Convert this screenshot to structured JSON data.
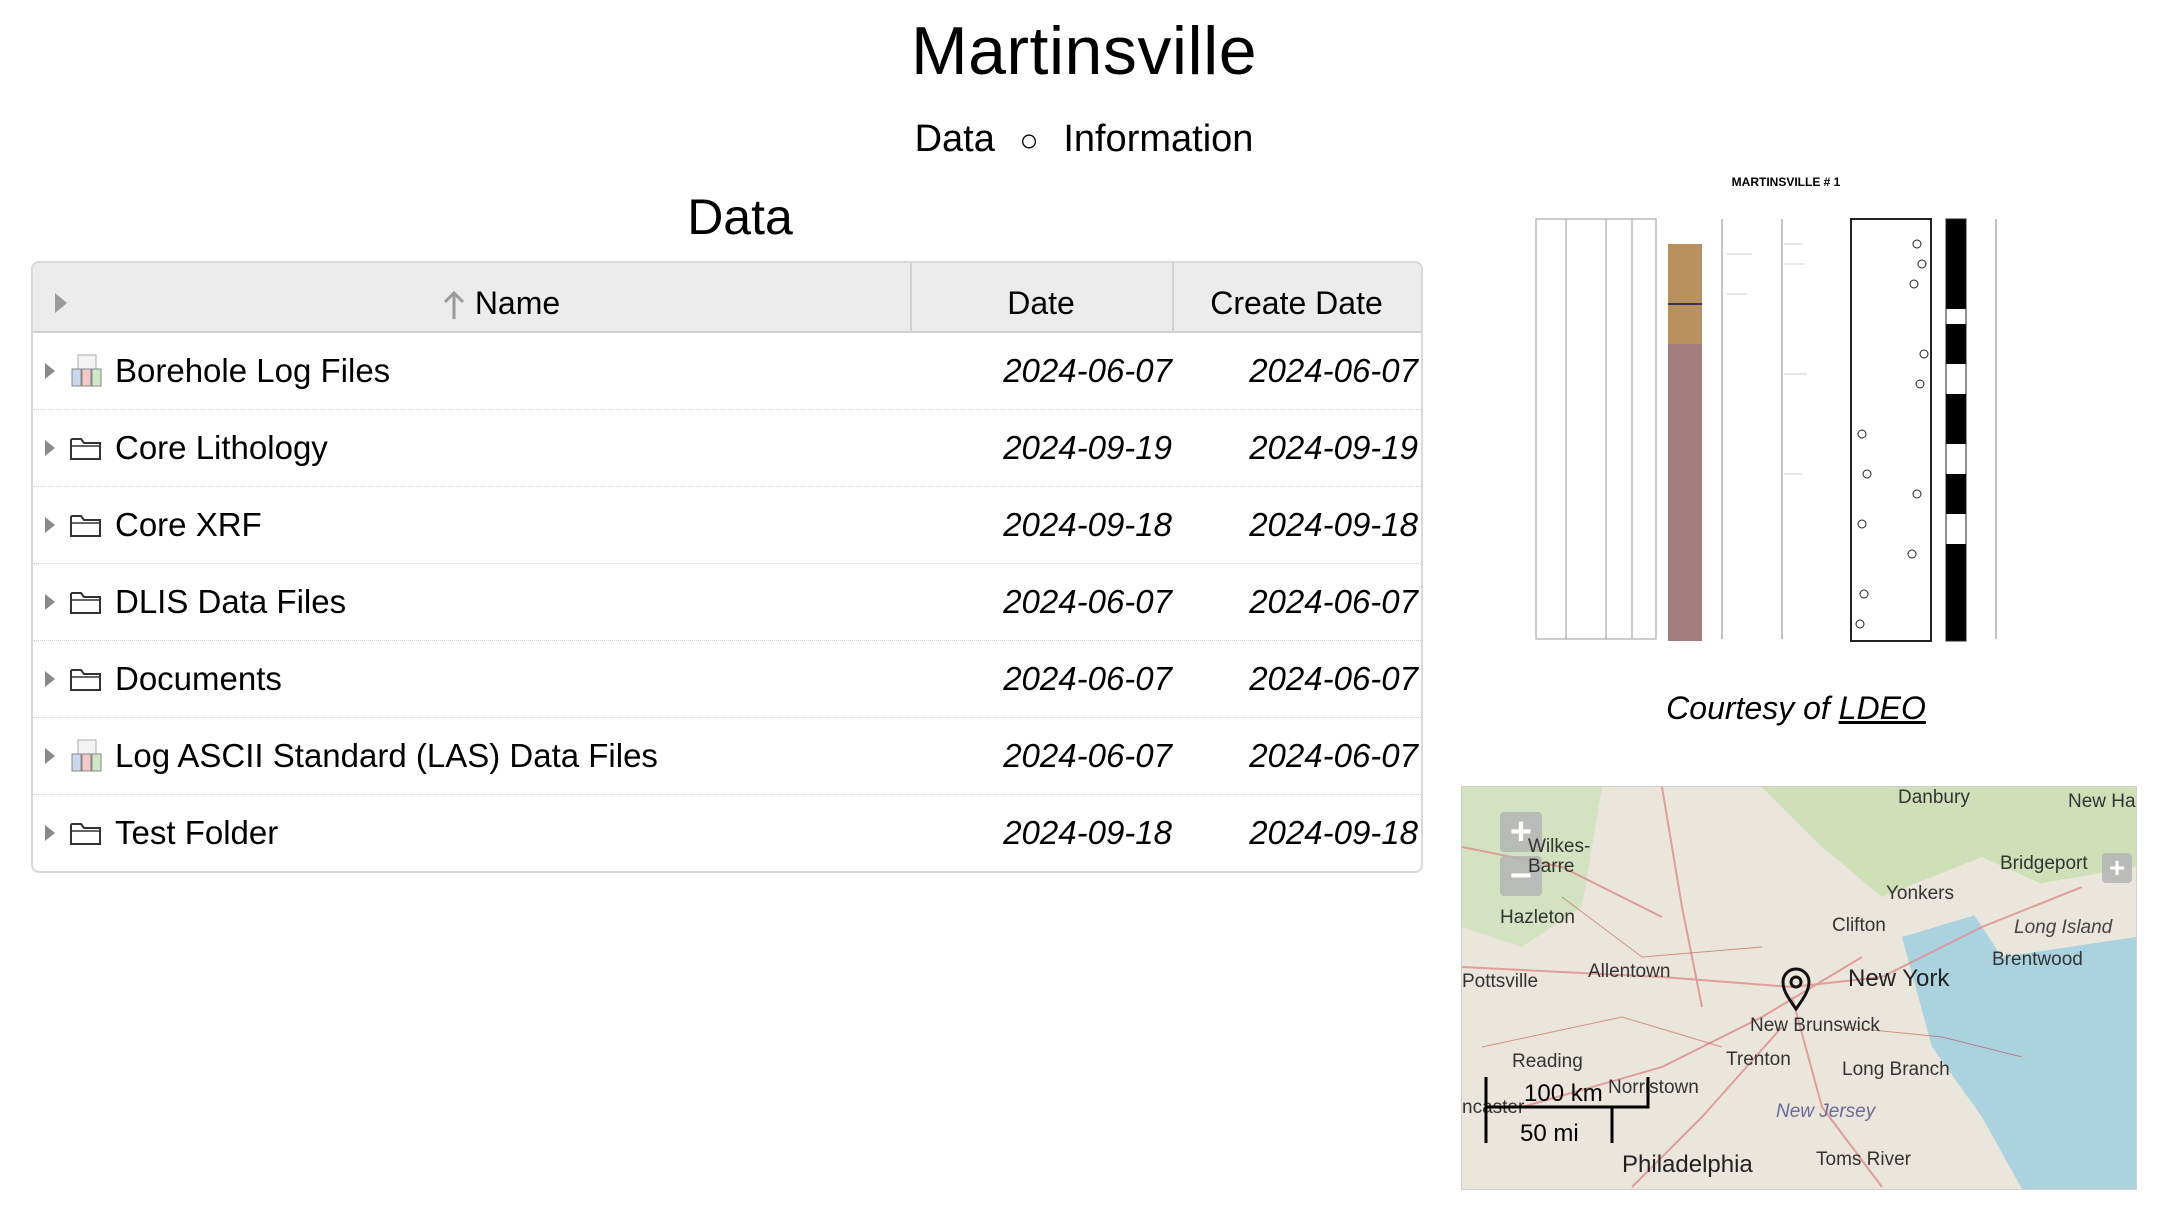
{
  "page": {
    "title": "Martinsville",
    "nav": {
      "data_label": "Data",
      "separator": "○",
      "info_label": "Information"
    },
    "section_title": "Data"
  },
  "table": {
    "columns": {
      "name": "Name",
      "date": "Date",
      "create_date": "Create Date"
    },
    "sort_indicator": "ascending",
    "rows": [
      {
        "name": "Borehole Log Files",
        "icon": "log-files-icon",
        "date": "2024-06-07",
        "create_date": "2024-06-07"
      },
      {
        "name": "Core Lithology",
        "icon": "folder-icon",
        "date": "2024-09-19",
        "create_date": "2024-09-19"
      },
      {
        "name": "Core XRF",
        "icon": "folder-icon",
        "date": "2024-09-18",
        "create_date": "2024-09-18"
      },
      {
        "name": "DLIS Data Files",
        "icon": "folder-icon",
        "date": "2024-06-07",
        "create_date": "2024-06-07"
      },
      {
        "name": "Documents",
        "icon": "folder-icon",
        "date": "2024-06-07",
        "create_date": "2024-06-07"
      },
      {
        "name": "Log ASCII Standard (LAS) Data Files",
        "icon": "log-files-icon",
        "date": "2024-06-07",
        "create_date": "2024-06-07"
      },
      {
        "name": "Test Folder",
        "icon": "folder-icon",
        "date": "2024-09-18",
        "create_date": "2024-09-18"
      }
    ]
  },
  "figure": {
    "caption_prefix": "Courtesy of",
    "caption_link": "LDEO",
    "well_log_title": "MARTINSVILLE # 1"
  },
  "map": {
    "zoom_in": "+",
    "zoom_out": "−",
    "scale_km": "100 km",
    "scale_mi": "50 mi",
    "labels": [
      "Danbury",
      "New Have",
      "Wilkes-Barre",
      "Bridgeport",
      "Yonkers",
      "Hazleton",
      "Clifton",
      "Long Island",
      "Brentwood",
      "Pottsville",
      "Allentown",
      "New York",
      "New Brunswick",
      "Reading",
      "Trenton",
      "Long Branch",
      "Norristown",
      "New Jersey",
      "ncaster",
      "Philadelphia",
      "Toms River"
    ]
  },
  "colors": {
    "header_bg": "#ececec",
    "border": "#d9d9d9",
    "map_water": "#aad3df"
  }
}
